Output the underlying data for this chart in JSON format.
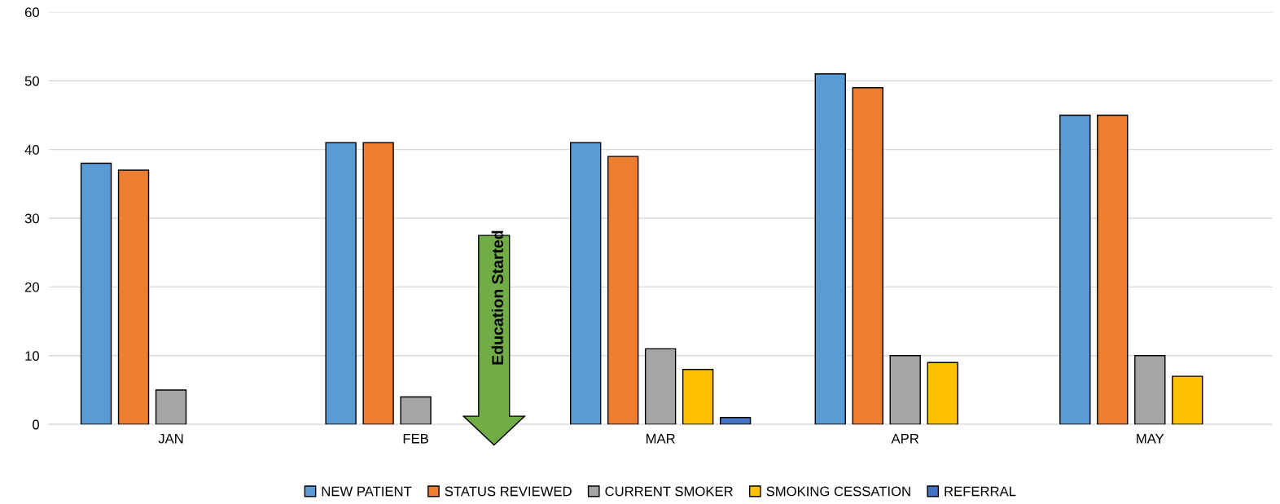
{
  "chart_data": {
    "type": "bar",
    "categories": [
      "JAN",
      "FEB",
      "MAR",
      "APR",
      "MAY"
    ],
    "series": [
      {
        "name": "NEW PATIENT",
        "color": "#5b9bd5",
        "values": [
          38,
          41,
          41,
          51,
          45
        ]
      },
      {
        "name": "STATUS REVIEWED",
        "color": "#ed7d31",
        "values": [
          37,
          41,
          39,
          49,
          45
        ]
      },
      {
        "name": "CURRENT SMOKER",
        "color": "#a5a5a5",
        "values": [
          5,
          4,
          11,
          10,
          10
        ]
      },
      {
        "name": "SMOKING CESSATION",
        "color": "#ffc000",
        "values": [
          null,
          null,
          8,
          9,
          7
        ]
      },
      {
        "name": "REFERRAL",
        "color": "#4472c4",
        "values": [
          null,
          null,
          1,
          null,
          null
        ]
      }
    ],
    "ylim": [
      0,
      60
    ],
    "yticks": [
      0,
      10,
      20,
      30,
      40,
      50,
      60
    ],
    "grid": "y",
    "legend": "bottom",
    "annotations": [
      "Education Started"
    ]
  }
}
